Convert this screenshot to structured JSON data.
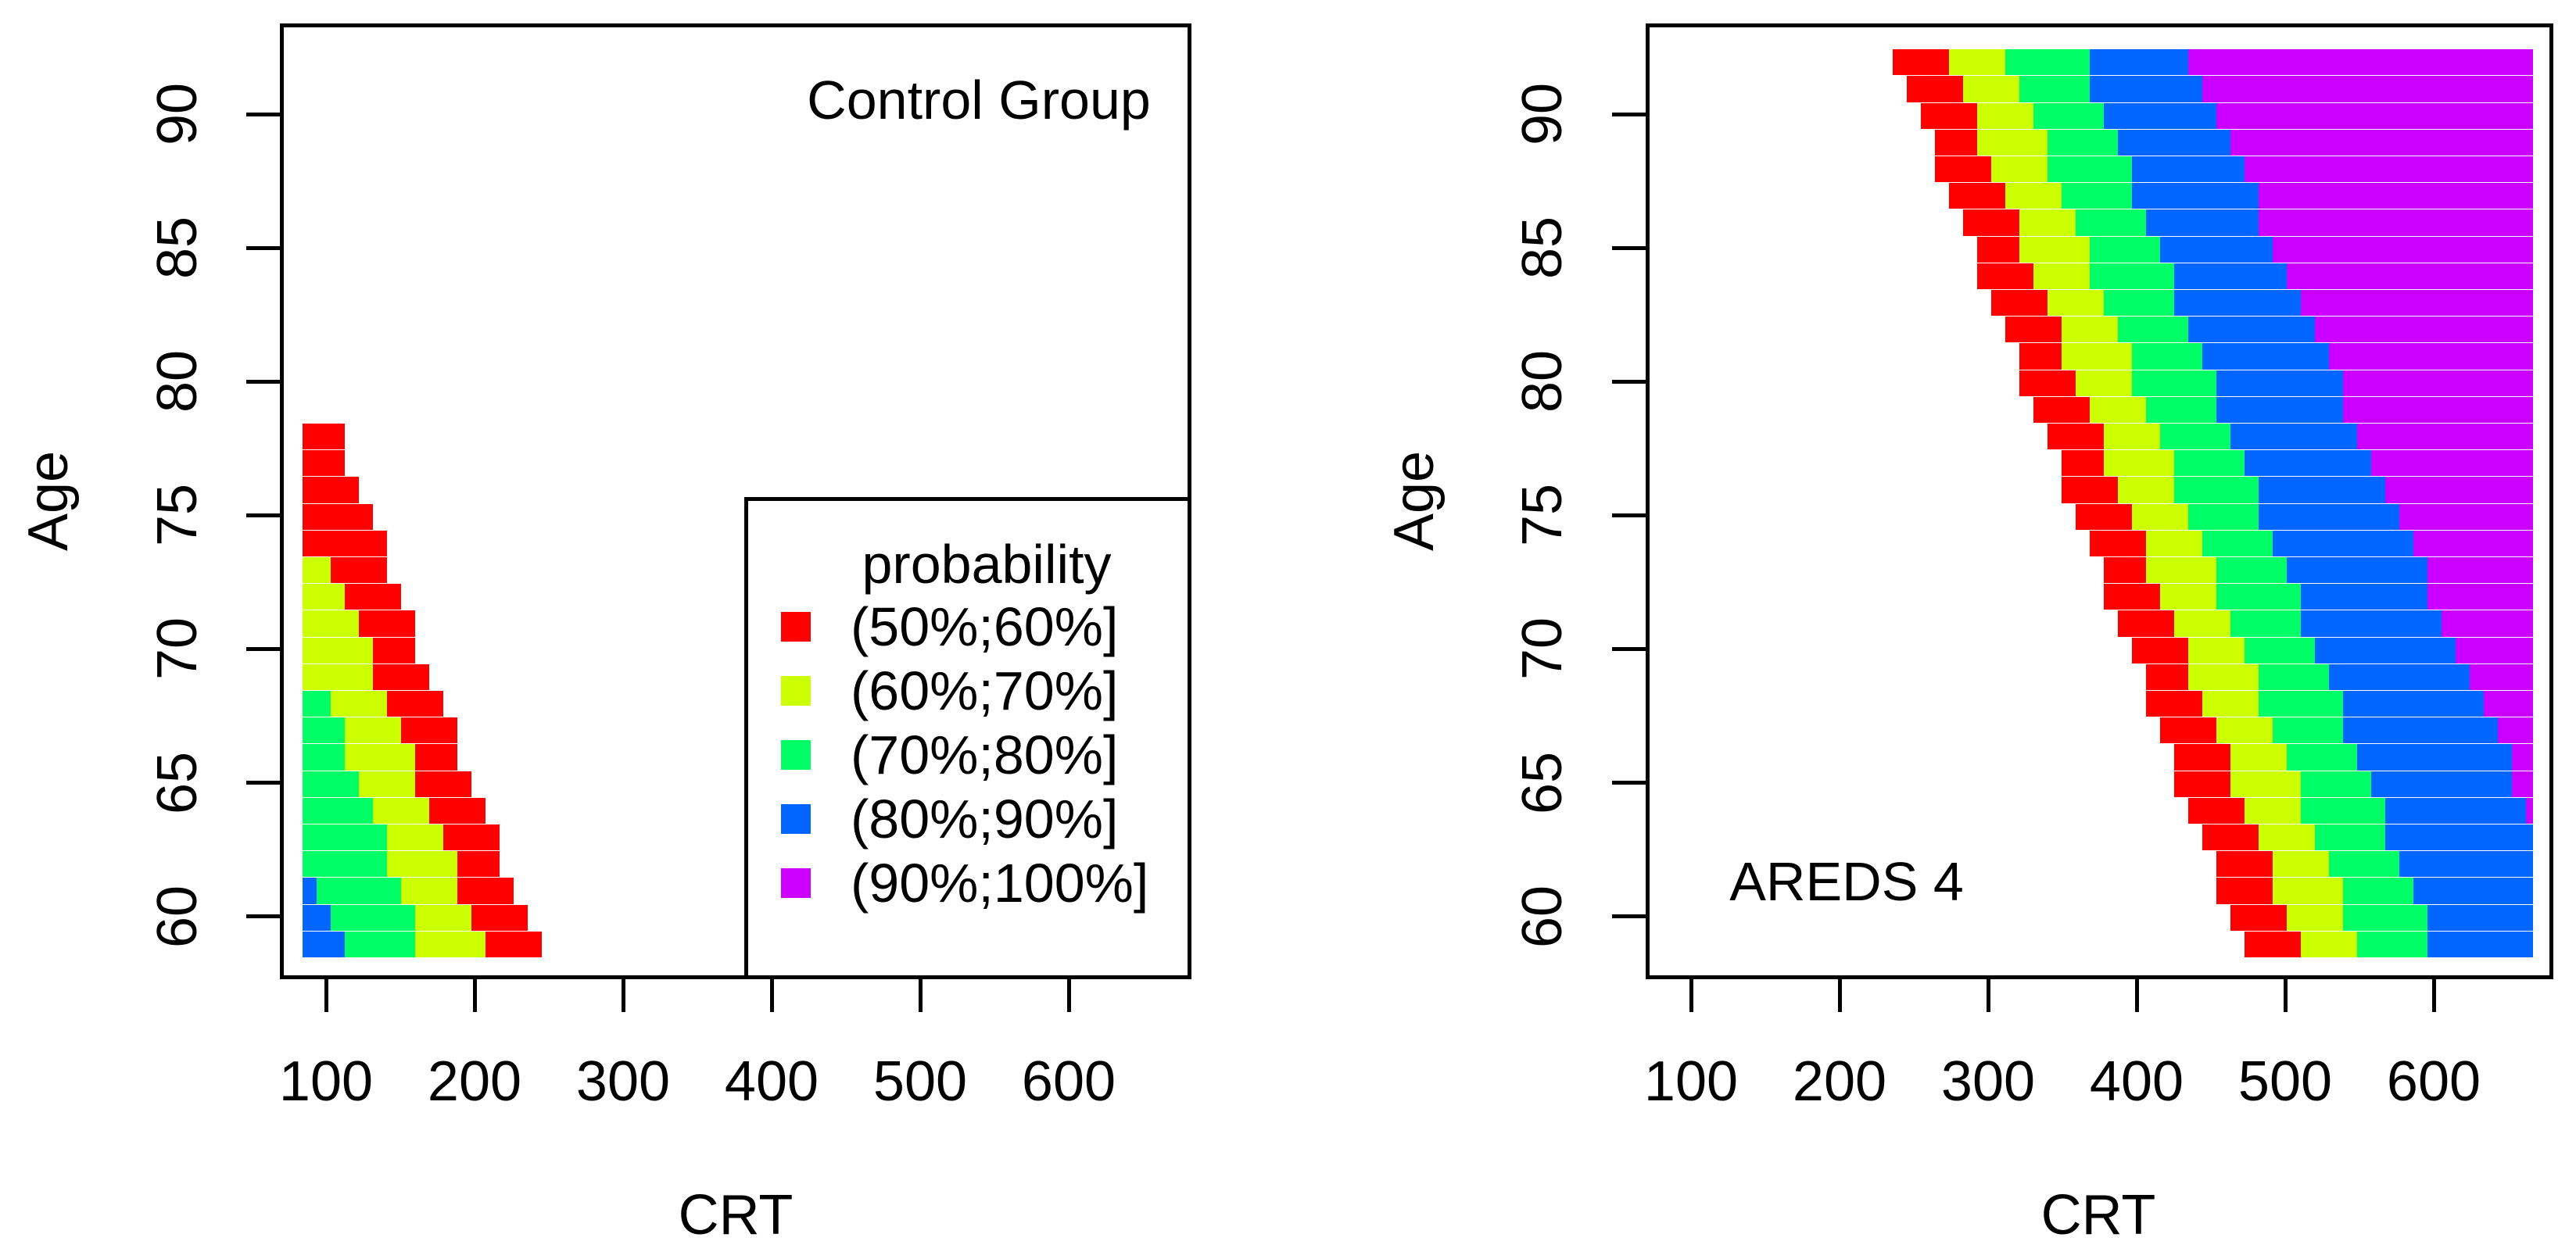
{
  "figure": {
    "background": "#ffffff",
    "text_color": "#000000",
    "description": "Two filled probability-contour maps of CRT vs Age"
  },
  "legend": {
    "title": "probability",
    "entries": [
      {
        "label": "(50%;60%]",
        "color": "#FF0000"
      },
      {
        "label": "(60%;70%]",
        "color": "#CCFF00"
      },
      {
        "label": "(70%;80%]",
        "color": "#00FF66"
      },
      {
        "label": "(80%;90%]",
        "color": "#0066FF"
      },
      {
        "label": "(90%;100%]",
        "color": "#CC00FF"
      }
    ],
    "position": "bottom-right of left plot"
  },
  "chart_data": [
    {
      "type": "heatmap",
      "subtype": "filled_probability_contour",
      "annotation": {
        "text": "Control Group",
        "position": "top-right"
      },
      "xlabel": "CRT",
      "ylabel": "Age",
      "x_ticks": [
        100,
        200,
        300,
        400,
        500,
        600
      ],
      "y_ticks": [
        60,
        65,
        70,
        75,
        80,
        85,
        90
      ],
      "x_axis_range_crt": [
        70,
        682
      ],
      "y_axis_range_age": [
        57.7,
        93.4
      ],
      "data_region": {
        "crt_min": 84,
        "crt_max": 667,
        "age_min": 58.45,
        "age_max": 92.45
      },
      "probability_direction": "probability decreases as CRT and Age increase",
      "boundaries": {
        "b50": {
          "crt_at_min_age": 245,
          "slope_crt_per_year": -7.0,
          "vanish_above_age": 78.45
        },
        "b60": {
          "crt_at_min_age": 209,
          "slope_crt_per_year": -7.05,
          "vanish_above_age": 73.45
        },
        "b70": {
          "crt_at_min_age": 168,
          "slope_crt_per_year": -6.85,
          "vanish_above_age": 68.45
        },
        "b80": {
          "crt_at_min_age": 120,
          "slope_crt_per_year": -10.5,
          "vanish_above_age": 61.85
        }
      },
      "segments": [
        {
          "color": "#0066FF",
          "band": "(80%;90%]",
          "from": "left_edge",
          "to": "b80"
        },
        {
          "color": "#00FF66",
          "band": "(70%;80%]",
          "from": "b80",
          "to": "b70"
        },
        {
          "color": "#CCFF00",
          "band": "(60%;70%]",
          "from": "b70",
          "to": "b60"
        },
        {
          "color": "#FF0000",
          "band": "(50%;60%]",
          "from": "b60",
          "to": "b50"
        }
      ],
      "grid": false,
      "legend_here": true
    },
    {
      "type": "heatmap",
      "subtype": "filled_probability_contour",
      "annotation": {
        "text": "AREDS 4",
        "position": "bottom-left"
      },
      "xlabel": "CRT",
      "ylabel": "Age",
      "x_ticks": [
        100,
        200,
        300,
        400,
        500,
        600
      ],
      "y_ticks": [
        60,
        65,
        70,
        75,
        80,
        85,
        90
      ],
      "x_axis_range_crt": [
        70,
        682
      ],
      "y_axis_range_age": [
        57.7,
        93.4
      ],
      "data_region": {
        "crt_min": 84,
        "crt_max": 667,
        "age_min": 58.45,
        "age_max": 92.45
      },
      "probability_direction": "probability increases as CRT increases, decreases as Age increases",
      "boundaries": {
        "b50": {
          "crt_at_min_age": 476,
          "slope_crt_per_year": -7.08
        },
        "b60": {
          "crt_at_min_age": 513,
          "slope_crt_per_year": -7.1
        },
        "b70": {
          "crt_at_min_age": 553,
          "slope_crt_per_year": -7.11
        },
        "b80": {
          "crt_at_min_age": 603,
          "slope_crt_per_year": -7.11
        },
        "b90": {
          "crt_at_min_age": 709.3,
          "slope_crt_per_year": -8.1
        }
      },
      "segments": [
        {
          "color": "#FF0000",
          "band": "(50%;60%]",
          "from": "b50",
          "to": "b60"
        },
        {
          "color": "#CCFF00",
          "band": "(60%;70%]",
          "from": "b60",
          "to": "b70"
        },
        {
          "color": "#00FF66",
          "band": "(70%;80%]",
          "from": "b70",
          "to": "b80"
        },
        {
          "color": "#0066FF",
          "band": "(80%;90%]",
          "from": "b80",
          "to": "b90"
        },
        {
          "color": "#CC00FF",
          "band": "(90%;100%]",
          "from": "b90",
          "to": "right_edge"
        }
      ],
      "grid": false,
      "legend_here": false
    }
  ]
}
